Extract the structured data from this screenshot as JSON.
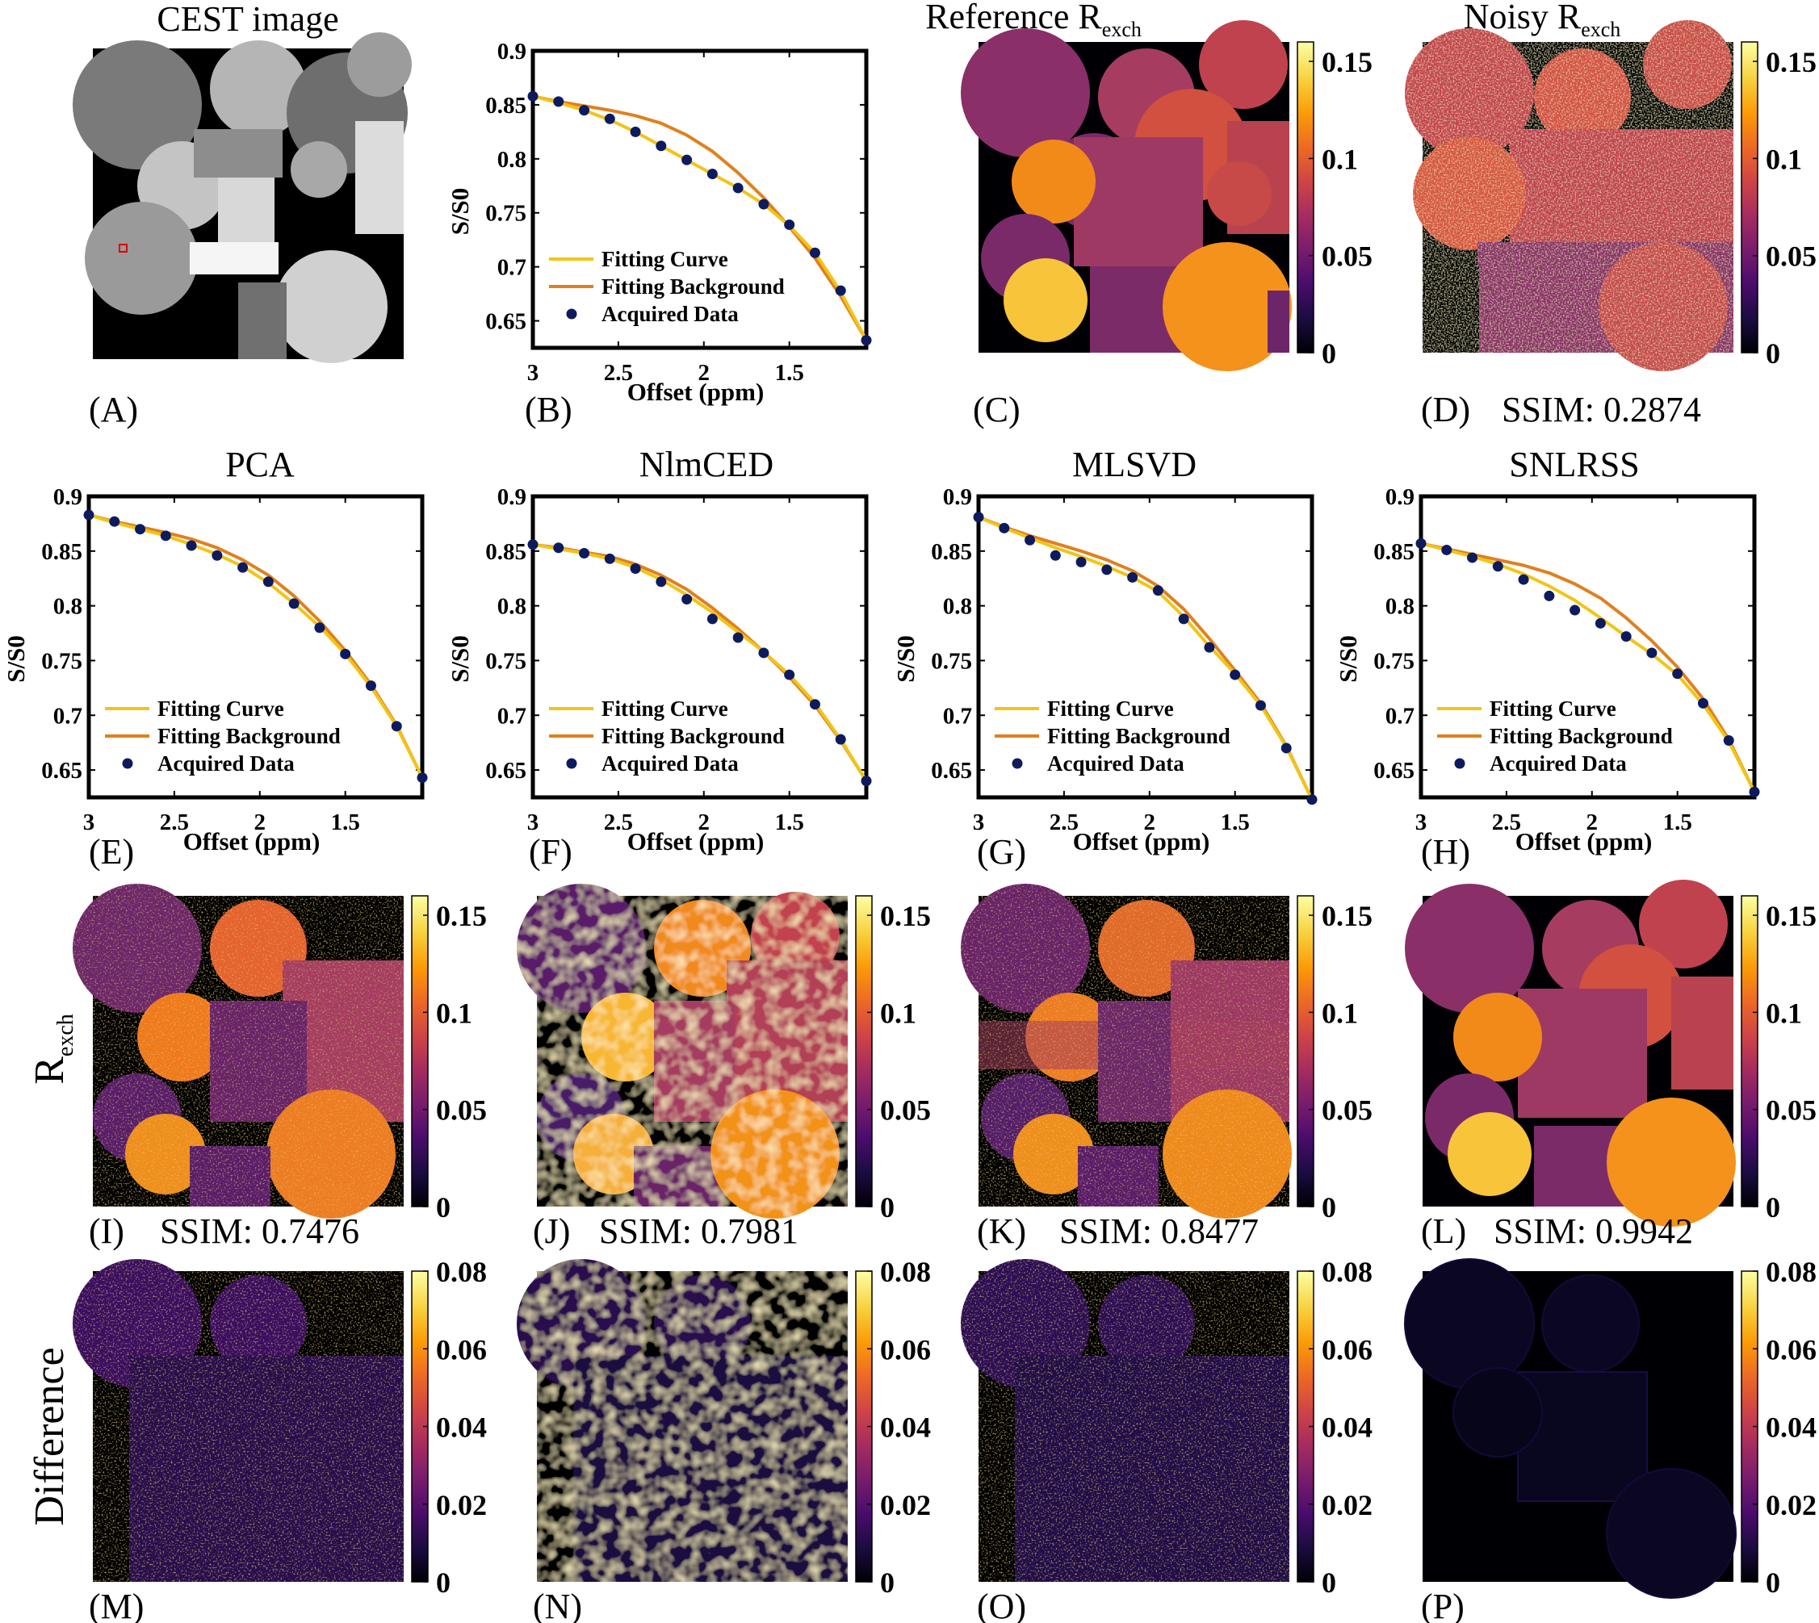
{
  "colors": {
    "fit_curve": "#f2c418",
    "fit_background": "#e0801e",
    "acquired": "#0d1b5e",
    "inferno": [
      "#000004",
      "#1b0c41",
      "#4a0c6b",
      "#781c6d",
      "#a52c60",
      "#cf4446",
      "#ed6925",
      "#fb9b06",
      "#f7d13d",
      "#fcffa4"
    ]
  },
  "panels": {
    "A": {
      "label": "(A)",
      "title": "CEST image"
    },
    "B": {
      "label": "(B)"
    },
    "C": {
      "label": "(C)",
      "title": "Reference R",
      "title_sub": "exch"
    },
    "D": {
      "label": "(D)",
      "title": "Noisy R",
      "title_sub": "exch",
      "ssim": "SSIM: 0.2874"
    },
    "E": {
      "label": "(E)",
      "title": "PCA"
    },
    "F": {
      "label": "(F)",
      "title": "NlmCED"
    },
    "G": {
      "label": "(G)",
      "title": "MLSVD"
    },
    "H": {
      "label": "(H)",
      "title": "SNLRSS"
    },
    "I": {
      "label": "(I)",
      "ssim": "SSIM: 0.7476"
    },
    "J": {
      "label": "(J)",
      "ssim": "SSIM: 0.7981"
    },
    "K": {
      "label": "(K)",
      "ssim": "SSIM: 0.8477"
    },
    "L": {
      "label": "(L)",
      "ssim": "SSIM: 0.9942"
    },
    "M": {
      "label": "(M)"
    },
    "N": {
      "label": "(N)"
    },
    "O": {
      "label": "(O)"
    },
    "P": {
      "label": "(P)"
    }
  },
  "row_labels": {
    "rexch_main": "R",
    "rexch_sub": "exch",
    "difference": "Difference"
  },
  "colorbars": {
    "rexch": {
      "ticks": [
        "0.15",
        "0.1",
        "0.05",
        "0"
      ],
      "values": [
        0.15,
        0.1,
        0.05,
        0
      ],
      "max": 0.16
    },
    "difference": {
      "ticks": [
        "0.08",
        "0.06",
        "0.04",
        "0.02",
        "0"
      ],
      "values": [
        0.08,
        0.06,
        0.04,
        0.02,
        0
      ],
      "max": 0.08
    }
  },
  "legend": {
    "fit_curve": "Fitting Curve",
    "fit_background": "Fitting Background",
    "acquired": "Acquired Data"
  },
  "chart_data": [
    {
      "id": "B",
      "type": "line",
      "xlabel": "Offset (ppm)",
      "ylabel": "S/S0",
      "xlim": [
        3,
        1.05
      ],
      "ylim": [
        0.625,
        0.9
      ],
      "x_reversed": true,
      "xticks": [
        3,
        2.5,
        2,
        1.5
      ],
      "xtick_labels": [
        "3",
        "2.5",
        "2",
        "1.5"
      ],
      "yticks": [
        0.9,
        0.85,
        0.8,
        0.75,
        0.7,
        0.65
      ],
      "ytick_labels": [
        "0.9",
        "0.85",
        "0.8",
        "0.75",
        "0.7",
        "0.65"
      ],
      "x": [
        3.0,
        2.85,
        2.7,
        2.55,
        2.4,
        2.25,
        2.1,
        1.95,
        1.8,
        1.65,
        1.5,
        1.35,
        1.2,
        1.05
      ],
      "series": [
        {
          "name": "Fitting Curve",
          "values": [
            0.858,
            0.852,
            0.845,
            0.836,
            0.825,
            0.812,
            0.799,
            0.786,
            0.773,
            0.758,
            0.738,
            0.713,
            0.677,
            0.632
          ]
        },
        {
          "name": "Fitting Background",
          "values": [
            0.858,
            0.853,
            0.849,
            0.845,
            0.84,
            0.833,
            0.822,
            0.807,
            0.787,
            0.764,
            0.737,
            0.708,
            0.673,
            0.632
          ]
        },
        {
          "name": "Acquired Data",
          "values": [
            0.858,
            0.853,
            0.845,
            0.837,
            0.825,
            0.812,
            0.799,
            0.786,
            0.773,
            0.758,
            0.739,
            0.713,
            0.678,
            0.632
          ]
        }
      ]
    },
    {
      "id": "E",
      "type": "line",
      "xlabel": "Offset (ppm)",
      "ylabel": "S/S0",
      "xlim": [
        3,
        1.05
      ],
      "ylim": [
        0.625,
        0.9
      ],
      "x_reversed": true,
      "xticks": [
        3,
        2.5,
        2,
        1.5
      ],
      "xtick_labels": [
        "3",
        "2.5",
        "2",
        "1.5"
      ],
      "yticks": [
        0.9,
        0.85,
        0.8,
        0.75,
        0.7,
        0.65
      ],
      "ytick_labels": [
        "0.9",
        "0.85",
        "0.8",
        "0.75",
        "0.7",
        "0.65"
      ],
      "x": [
        3.0,
        2.85,
        2.7,
        2.55,
        2.4,
        2.25,
        2.1,
        1.95,
        1.8,
        1.65,
        1.5,
        1.35,
        1.2,
        1.05
      ],
      "series": [
        {
          "name": "Fitting Curve",
          "values": [
            0.883,
            0.876,
            0.87,
            0.864,
            0.856,
            0.847,
            0.836,
            0.821,
            0.802,
            0.781,
            0.756,
            0.726,
            0.69,
            0.643
          ]
        },
        {
          "name": "Fitting Background",
          "values": [
            0.883,
            0.877,
            0.872,
            0.867,
            0.861,
            0.853,
            0.842,
            0.828,
            0.809,
            0.786,
            0.759,
            0.728,
            0.691,
            0.643
          ]
        },
        {
          "name": "Acquired Data",
          "values": [
            0.883,
            0.877,
            0.87,
            0.864,
            0.855,
            0.846,
            0.835,
            0.822,
            0.802,
            0.78,
            0.756,
            0.727,
            0.69,
            0.643
          ]
        }
      ]
    },
    {
      "id": "F",
      "type": "line",
      "xlabel": "Offset (ppm)",
      "ylabel": "S/S0",
      "xlim": [
        3,
        1.05
      ],
      "ylim": [
        0.625,
        0.9
      ],
      "x_reversed": true,
      "xticks": [
        3,
        2.5,
        2,
        1.5
      ],
      "xtick_labels": [
        "3",
        "2.5",
        "2",
        "1.5"
      ],
      "yticks": [
        0.9,
        0.85,
        0.8,
        0.75,
        0.7,
        0.65
      ],
      "ytick_labels": [
        "0.9",
        "0.85",
        "0.8",
        "0.75",
        "0.7",
        "0.65"
      ],
      "x": [
        3.0,
        2.85,
        2.7,
        2.55,
        2.4,
        2.25,
        2.1,
        1.95,
        1.8,
        1.65,
        1.5,
        1.35,
        1.2,
        1.05
      ],
      "series": [
        {
          "name": "Fitting Curve",
          "values": [
            0.856,
            0.852,
            0.848,
            0.843,
            0.835,
            0.824,
            0.81,
            0.794,
            0.776,
            0.758,
            0.737,
            0.711,
            0.678,
            0.64
          ]
        },
        {
          "name": "Fitting Background",
          "values": [
            0.856,
            0.853,
            0.849,
            0.845,
            0.838,
            0.828,
            0.815,
            0.798,
            0.779,
            0.758,
            0.735,
            0.709,
            0.677,
            0.64
          ]
        },
        {
          "name": "Acquired Data",
          "values": [
            0.856,
            0.853,
            0.848,
            0.843,
            0.834,
            0.822,
            0.806,
            0.788,
            0.771,
            0.757,
            0.737,
            0.71,
            0.678,
            0.64
          ]
        }
      ]
    },
    {
      "id": "G",
      "type": "line",
      "xlabel": "Offset (ppm)",
      "ylabel": "S/S0",
      "xlim": [
        3,
        1.05
      ],
      "ylim": [
        0.625,
        0.9
      ],
      "x_reversed": true,
      "xticks": [
        3,
        2.5,
        2,
        1.5
      ],
      "xtick_labels": [
        "3",
        "2.5",
        "2",
        "1.5"
      ],
      "yticks": [
        0.9,
        0.85,
        0.8,
        0.75,
        0.7,
        0.65
      ],
      "ytick_labels": [
        "0.9",
        "0.85",
        "0.8",
        "0.75",
        "0.7",
        "0.65"
      ],
      "x": [
        3.0,
        2.85,
        2.7,
        2.55,
        2.4,
        2.25,
        2.1,
        1.95,
        1.8,
        1.65,
        1.5,
        1.35,
        1.2,
        1.05
      ],
      "series": [
        {
          "name": "Fitting Curve",
          "values": [
            0.881,
            0.871,
            0.862,
            0.853,
            0.845,
            0.836,
            0.826,
            0.813,
            0.79,
            0.763,
            0.738,
            0.709,
            0.671,
            0.623
          ]
        },
        {
          "name": "Fitting Background",
          "values": [
            0.881,
            0.872,
            0.864,
            0.857,
            0.85,
            0.842,
            0.832,
            0.818,
            0.797,
            0.77,
            0.741,
            0.711,
            0.672,
            0.623
          ]
        },
        {
          "name": "Acquired Data",
          "values": [
            0.881,
            0.871,
            0.86,
            0.846,
            0.84,
            0.833,
            0.826,
            0.814,
            0.788,
            0.762,
            0.737,
            0.709,
            0.67,
            0.623
          ]
        }
      ]
    },
    {
      "id": "H",
      "type": "line",
      "xlabel": "Offset (ppm)",
      "ylabel": "S/S0",
      "xlim": [
        3,
        1.05
      ],
      "ylim": [
        0.625,
        0.9
      ],
      "x_reversed": true,
      "xticks": [
        3,
        2.5,
        2,
        1.5
      ],
      "xtick_labels": [
        "3",
        "2.5",
        "2",
        "1.5"
      ],
      "yticks": [
        0.9,
        0.85,
        0.8,
        0.75,
        0.7,
        0.65
      ],
      "ytick_labels": [
        "0.9",
        "0.85",
        "0.8",
        "0.75",
        "0.7",
        "0.65"
      ],
      "x": [
        3.0,
        2.85,
        2.7,
        2.55,
        2.4,
        2.25,
        2.1,
        1.95,
        1.8,
        1.65,
        1.5,
        1.35,
        1.2,
        1.05
      ],
      "series": [
        {
          "name": "Fitting Curve",
          "values": [
            0.857,
            0.851,
            0.845,
            0.838,
            0.829,
            0.818,
            0.805,
            0.789,
            0.772,
            0.756,
            0.737,
            0.71,
            0.676,
            0.63
          ]
        },
        {
          "name": "Fitting Background",
          "values": [
            0.857,
            0.852,
            0.847,
            0.842,
            0.837,
            0.83,
            0.82,
            0.807,
            0.789,
            0.768,
            0.744,
            0.715,
            0.678,
            0.63
          ]
        },
        {
          "name": "Acquired Data",
          "values": [
            0.857,
            0.851,
            0.844,
            0.836,
            0.824,
            0.809,
            0.796,
            0.784,
            0.772,
            0.757,
            0.738,
            0.711,
            0.677,
            0.63
          ]
        }
      ]
    }
  ]
}
